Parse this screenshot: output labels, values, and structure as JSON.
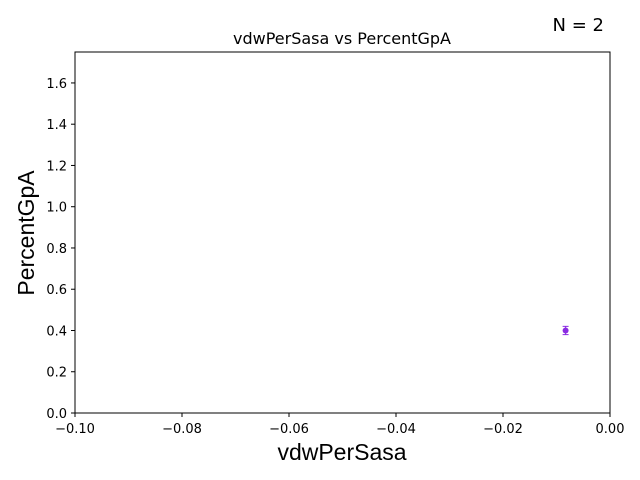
{
  "chart_data": {
    "type": "scatter",
    "title": "vdwPerSasa vs PercentGpA",
    "xlabel": "vdwPerSasa",
    "ylabel": "PercentGpA",
    "annotation": "N = 2",
    "xlim": [
      -0.1,
      0.0
    ],
    "ylim": [
      0.0,
      1.75
    ],
    "xticks": [
      -0.1,
      -0.08,
      -0.06,
      -0.04,
      -0.02,
      0.0
    ],
    "xtick_labels": [
      "−0.10",
      "−0.08",
      "−0.06",
      "−0.04",
      "−0.02",
      "0.00"
    ],
    "yticks": [
      0.0,
      0.2,
      0.4,
      0.6,
      0.8,
      1.0,
      1.2,
      1.4,
      1.6
    ],
    "ytick_labels": [
      "0.0",
      "0.2",
      "0.4",
      "0.6",
      "0.8",
      "1.0",
      "1.2",
      "1.4",
      "1.6"
    ],
    "grid": false,
    "points": [
      {
        "x": -0.0083,
        "y": 0.4,
        "yerr": 0.02,
        "color": "#8a2be2"
      }
    ]
  }
}
